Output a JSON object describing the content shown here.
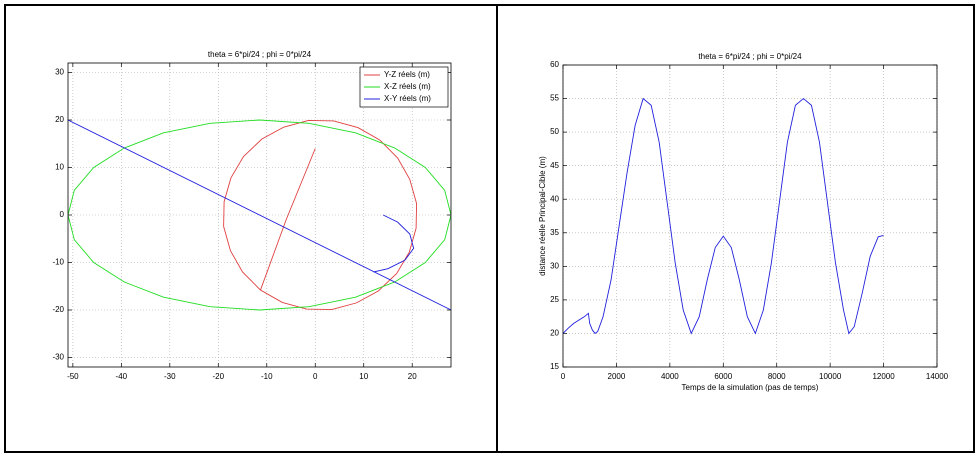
{
  "chart_data": [
    {
      "type": "line",
      "title": "theta = 6*pi/24 ; phi = 0*pi/24",
      "xlim": [
        -51,
        28
      ],
      "ylim": [
        -32,
        32
      ],
      "xticks": [
        -50,
        -40,
        -30,
        -20,
        -10,
        0,
        10,
        20
      ],
      "yticks": [
        -30,
        -20,
        -10,
        0,
        10,
        20,
        30
      ],
      "grid": true,
      "legend": "top-right",
      "series": [
        {
          "name": "Y-Z réels (m)",
          "color": "#e04040",
          "x": [
            0,
            -6,
            -11.3,
            -6.8,
            -1.8,
            3.4,
            8.5,
            13.0,
            16.8,
            19.4,
            20.8,
            20.9,
            19.5,
            17.0,
            13.3,
            8.8,
            3.8,
            -1.4,
            -6.5,
            -11.0,
            -14.8,
            -17.4,
            -18.8,
            -18.9,
            -17.5,
            -15.0,
            -11.3
          ],
          "values": [
            14,
            -1,
            -15.8,
            -18.4,
            -19.8,
            -19.9,
            -18.5,
            -16.0,
            -12.3,
            -7.8,
            -2.8,
            2.4,
            7.5,
            12.0,
            15.8,
            18.4,
            19.8,
            19.9,
            18.5,
            16.0,
            12.3,
            7.8,
            2.8,
            -2.4,
            -7.5,
            -12.0,
            -15.8
          ]
        },
        {
          "name": "X-Z réels (m)",
          "color": "#22dd22",
          "x": [
            28,
            26.7,
            22.7,
            16.4,
            8.3,
            -1.3,
            -11.5,
            -21.7,
            -31.3,
            -39.4,
            -45.7,
            -49.7,
            -51,
            -49.7,
            -45.7,
            -39.4,
            -31.3,
            -21.7,
            -11.5,
            -1.3,
            8.3,
            16.4,
            22.7,
            26.7,
            28
          ],
          "values": [
            0,
            5.2,
            10,
            14.1,
            17.3,
            19.3,
            20,
            19.3,
            17.3,
            14.1,
            10,
            5.2,
            0,
            -5.2,
            -10,
            -14.1,
            -17.3,
            -19.3,
            -20,
            -19.3,
            -17.3,
            -14.1,
            -10,
            -5.2,
            0
          ]
        },
        {
          "name": "X-Y réels (m)",
          "color": "#2020dd",
          "x": [
            14,
            17,
            19.5,
            20.3,
            18.5,
            15,
            12,
            null,
            -51,
            28
          ],
          "values": [
            0,
            -1.5,
            -4,
            -7,
            -9.5,
            -11.3,
            -12,
            null,
            20,
            -20
          ]
        }
      ]
    },
    {
      "type": "line",
      "title": "theta = 6*pi/24 ; phi = 0*pi/24",
      "xlabel": "Temps de la simulation (pas de temps)",
      "ylabel": "distance réelle Principal-Cible (m)",
      "xlim": [
        0,
        14000
      ],
      "ylim": [
        15,
        60
      ],
      "xticks": [
        0,
        2000,
        4000,
        6000,
        8000,
        10000,
        12000,
        14000
      ],
      "yticks": [
        15,
        20,
        25,
        30,
        35,
        40,
        45,
        50,
        55,
        60
      ],
      "grid": true,
      "series": [
        {
          "color": "#2020dd",
          "x": [
            0,
            200,
            400,
            600,
            800,
            950,
            1000,
            1100,
            1200,
            1300,
            1500,
            1800,
            2100,
            2400,
            2700,
            3000,
            3300,
            3600,
            3900,
            4200,
            4500,
            4800,
            5100,
            5400,
            5700,
            6000,
            6300,
            6600,
            6900,
            7200,
            7500,
            7800,
            8100,
            8400,
            8700,
            9000,
            9300,
            9600,
            9900,
            10200,
            10500,
            10700,
            10900,
            11200,
            11500,
            11800,
            12000
          ],
          "values": [
            20,
            20.8,
            21.5,
            22,
            22.5,
            23,
            21.5,
            20.5,
            20,
            20.3,
            22.5,
            28,
            36,
            44,
            51,
            55,
            54,
            48.5,
            39.5,
            30.5,
            23.5,
            20,
            22.5,
            28,
            32.8,
            34.5,
            32.8,
            28,
            22.5,
            20,
            23.5,
            30.5,
            39.5,
            48.5,
            54,
            55,
            54,
            48.5,
            39.5,
            30.5,
            23.5,
            20,
            21,
            26,
            31.5,
            34.4,
            34.6
          ]
        }
      ]
    }
  ]
}
